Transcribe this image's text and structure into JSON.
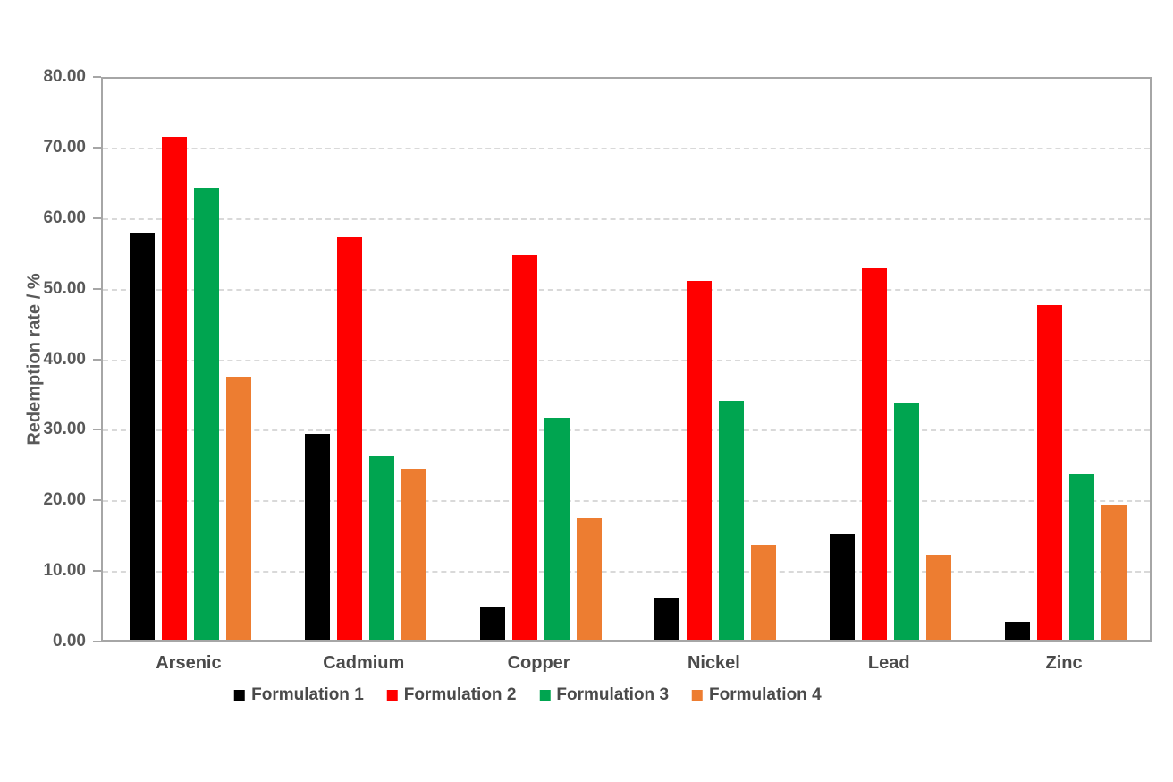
{
  "chart_data": {
    "type": "bar",
    "title": "",
    "xlabel": "",
    "ylabel": "Redemption rate / %",
    "ylim": [
      0,
      80
    ],
    "ytick_step": 10,
    "ytick_labels": [
      "0.00",
      "10.00",
      "20.00",
      "30.00",
      "40.00",
      "50.00",
      "60.00",
      "70.00",
      "80.00"
    ],
    "grid": "horizontal-dashed",
    "legend_position": "bottom",
    "categories": [
      "Arsenic",
      "Cadmium",
      "Copper",
      "Nickel",
      "Lead",
      "Zinc"
    ],
    "series": [
      {
        "name": "Formulation 1",
        "color": "#000000",
        "values": [
          57.7,
          29.2,
          4.7,
          6.0,
          15.0,
          2.5
        ]
      },
      {
        "name": "Formulation 2",
        "color": "#FF0000",
        "values": [
          71.3,
          57.0,
          54.5,
          50.9,
          52.6,
          47.4
        ]
      },
      {
        "name": "Formulation 3",
        "color": "#00A550",
        "values": [
          64.0,
          26.0,
          31.5,
          33.8,
          33.6,
          23.5
        ]
      },
      {
        "name": "Formulation 4",
        "color": "#ED7D31",
        "values": [
          37.3,
          24.2,
          17.3,
          13.4,
          12.0,
          19.1
        ]
      }
    ],
    "colors": {
      "axis_line": "#A6A6A6",
      "gridline": "#D9D9D9",
      "tick_text": "#595959",
      "category_text": "#4A4A4A",
      "background": "#FFFFFF"
    }
  }
}
